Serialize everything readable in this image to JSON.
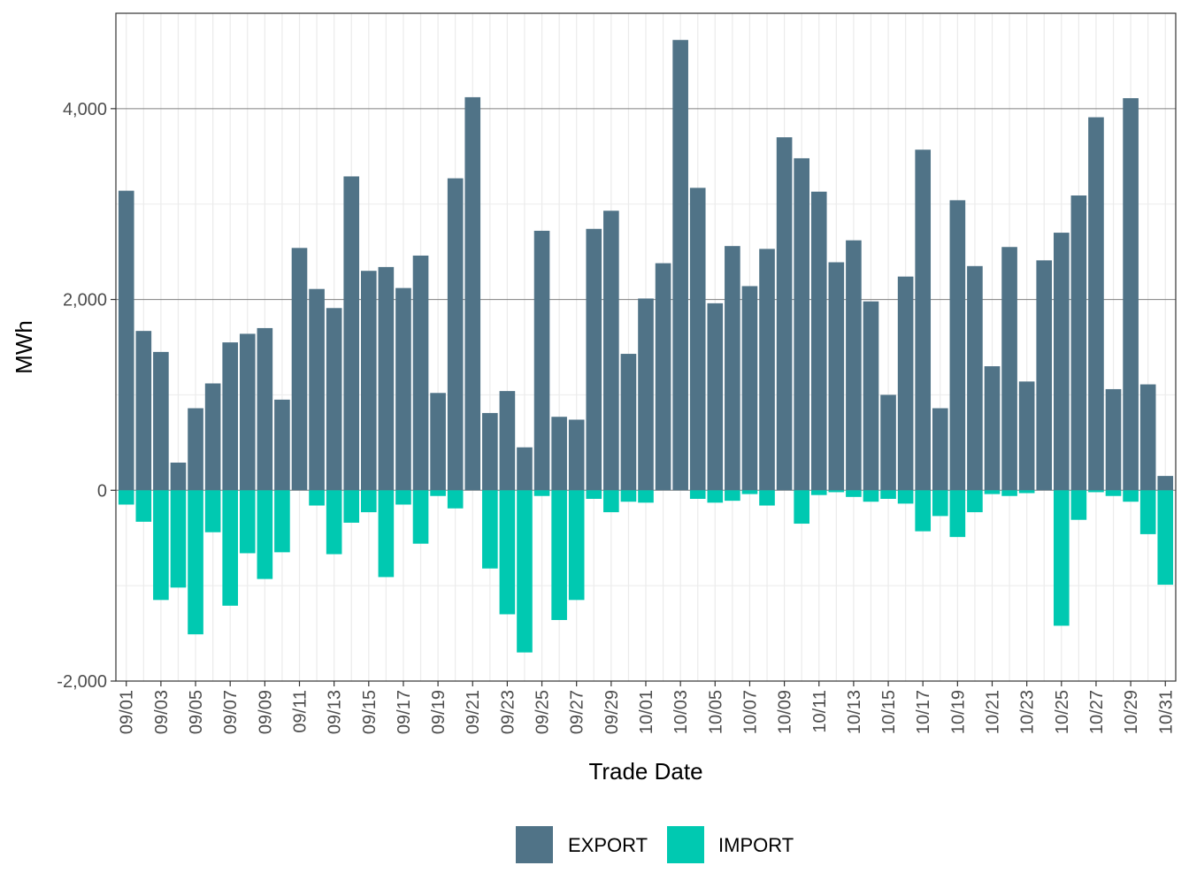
{
  "colors": {
    "export": "#507387",
    "import": "#00C9B1",
    "grid_major": "#7f7f7f",
    "grid_minor": "#ebebeb",
    "panel_border": "#333333"
  },
  "chart_data": {
    "type": "bar",
    "stacked": "diverging",
    "xlabel": "Trade Date",
    "ylabel": "MWh",
    "ylim": [
      -2000,
      5000
    ],
    "y_ticks": [
      {
        "value": -2000,
        "label": "-2,000"
      },
      {
        "value": 0,
        "label": "0"
      },
      {
        "value": 2000,
        "label": "2,000"
      },
      {
        "value": 4000,
        "label": "4,000"
      }
    ],
    "categories": [
      "09/01",
      "09/02",
      "09/03",
      "09/04",
      "09/05",
      "09/06",
      "09/07",
      "09/08",
      "09/09",
      "09/10",
      "09/11",
      "09/12",
      "09/13",
      "09/14",
      "09/15",
      "09/16",
      "09/17",
      "09/18",
      "09/19",
      "09/20",
      "09/21",
      "09/22",
      "09/23",
      "09/24",
      "09/25",
      "09/26",
      "09/27",
      "09/28",
      "09/29",
      "09/30",
      "10/01",
      "10/02",
      "10/03",
      "10/04",
      "10/05",
      "10/06",
      "10/07",
      "10/08",
      "10/09",
      "10/10",
      "10/11",
      "10/12",
      "10/13",
      "10/14",
      "10/15",
      "10/16",
      "10/17",
      "10/18",
      "10/19",
      "10/20",
      "10/21",
      "10/22",
      "10/23",
      "10/24",
      "10/25",
      "10/26",
      "10/27",
      "10/28",
      "10/29",
      "10/30",
      "10/31"
    ],
    "x_tick_labels": [
      "09/01",
      "09/03",
      "09/05",
      "09/07",
      "09/09",
      "09/11",
      "09/13",
      "09/15",
      "09/17",
      "09/19",
      "09/21",
      "09/23",
      "09/25",
      "09/27",
      "09/29",
      "10/01",
      "10/03",
      "10/05",
      "10/07",
      "10/09",
      "10/11",
      "10/13",
      "10/15",
      "10/17",
      "10/19",
      "10/21",
      "10/23",
      "10/25",
      "10/27",
      "10/29",
      "10/31"
    ],
    "series": [
      {
        "name": "EXPORT",
        "values": [
          3140,
          1670,
          1450,
          290,
          860,
          1120,
          1550,
          1640,
          1700,
          950,
          2540,
          2110,
          1910,
          3290,
          2300,
          2340,
          2120,
          2460,
          1020,
          3270,
          4120,
          810,
          1040,
          450,
          2720,
          770,
          740,
          2740,
          2930,
          1430,
          2010,
          2380,
          4720,
          3170,
          1960,
          2560,
          2140,
          2530,
          3700,
          3480,
          3130,
          2390,
          2620,
          1980,
          1000,
          2240,
          3570,
          860,
          3040,
          2350,
          1300,
          2550,
          1140,
          2410,
          2700,
          3090,
          3910,
          1060,
          4110,
          1110,
          150
        ]
      },
      {
        "name": "IMPORT",
        "values": [
          -150,
          -330,
          -1150,
          -1020,
          -1510,
          -440,
          -1210,
          -660,
          -930,
          -650,
          0,
          -160,
          -670,
          -340,
          -230,
          -910,
          -150,
          -560,
          -60,
          -190,
          0,
          -820,
          -1300,
          -1700,
          -60,
          -1360,
          -1150,
          -90,
          -230,
          -120,
          -130,
          0,
          0,
          -90,
          -130,
          -110,
          -40,
          -160,
          0,
          -350,
          -50,
          -20,
          -70,
          -120,
          -90,
          -140,
          -430,
          -270,
          -490,
          -230,
          -40,
          -60,
          -30,
          0,
          -1420,
          -310,
          -20,
          -60,
          -120,
          -460,
          -990
        ]
      }
    ],
    "legend": [
      "EXPORT",
      "IMPORT"
    ],
    "legend_position": "bottom"
  }
}
